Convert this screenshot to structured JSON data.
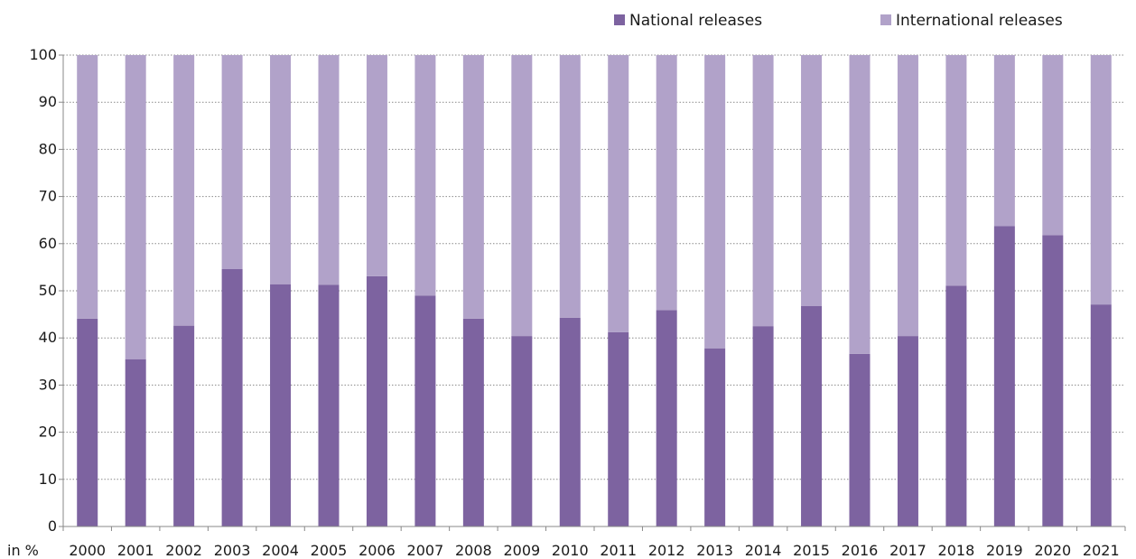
{
  "colors": {
    "national": "#7d63a0",
    "international": "#b1a2c9",
    "gridline": "#8a8a8a",
    "axis": "#888888"
  },
  "chart_data": {
    "type": "bar",
    "stacked": true,
    "unit_label": "in %",
    "categories": [
      "2000",
      "2001",
      "2002",
      "2003",
      "2004",
      "2005",
      "2006",
      "2007",
      "2008",
      "2009",
      "2010",
      "2011",
      "2012",
      "2013",
      "2014",
      "2015",
      "2016",
      "2017",
      "2018",
      "2019",
      "2020",
      "2021"
    ],
    "series": [
      {
        "name": "National releases",
        "color": "#7d63a0",
        "values": [
          44.1,
          35.5,
          42.6,
          54.6,
          51.4,
          51.3,
          53.1,
          49.0,
          44.1,
          40.4,
          44.3,
          41.2,
          45.9,
          37.8,
          42.5,
          46.8,
          36.6,
          40.4,
          51.1,
          63.7,
          61.8,
          47.1
        ]
      },
      {
        "name": "International releases",
        "color": "#b1a2c9",
        "values": [
          55.9,
          64.5,
          57.4,
          45.4,
          48.6,
          48.7,
          46.9,
          51.0,
          55.9,
          59.6,
          55.7,
          58.8,
          54.1,
          62.2,
          57.5,
          53.2,
          63.4,
          59.6,
          48.9,
          36.3,
          38.2,
          52.9
        ]
      }
    ],
    "ylim": [
      0,
      100
    ],
    "yticks": [
      0,
      10,
      20,
      30,
      40,
      50,
      60,
      70,
      80,
      90,
      100
    ],
    "grid": true,
    "legend_position": "top-right"
  }
}
